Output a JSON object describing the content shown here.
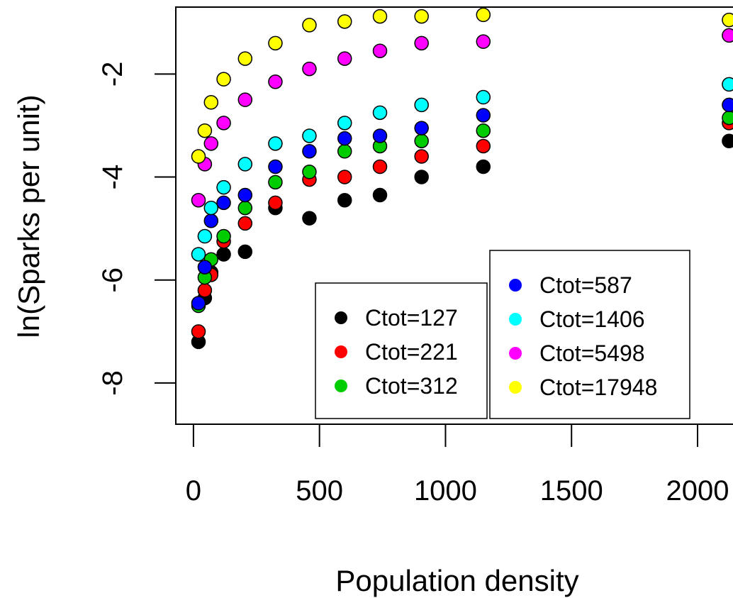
{
  "chart_data": {
    "type": "scatter",
    "xlabel": "Population density",
    "ylabel": "ln(Sparks per unit)",
    "xlim": [
      -70,
      2180
    ],
    "ylim": [
      -8.8,
      -0.7
    ],
    "xticks": [
      0,
      500,
      1000,
      1500,
      2000
    ],
    "yticks": [
      -8,
      -6,
      -4,
      -2
    ],
    "x": [
      20,
      45,
      70,
      120,
      205,
      325,
      460,
      600,
      740,
      905,
      1150,
      2125
    ],
    "series": [
      {
        "name": "Ctot=127",
        "color": "#000000",
        "values": [
          -7.2,
          -6.35,
          -5.85,
          -5.5,
          -5.45,
          -4.6,
          -4.8,
          -4.45,
          -4.35,
          -4.0,
          -3.8,
          -3.3
        ]
      },
      {
        "name": "Ctot=221",
        "color": "#ff0000",
        "values": [
          -7.0,
          -6.2,
          -5.9,
          -5.25,
          -4.9,
          -4.5,
          -4.05,
          -4.0,
          -3.8,
          -3.6,
          -3.4,
          -2.95
        ]
      },
      {
        "name": "Ctot=312",
        "color": "#00cd00",
        "values": [
          -6.5,
          -5.95,
          -5.6,
          -5.15,
          -4.6,
          -4.1,
          -3.9,
          -3.5,
          -3.4,
          -3.3,
          -3.1,
          -2.85
        ]
      },
      {
        "name": "Ctot=587",
        "color": "#0000ff",
        "values": [
          -6.45,
          -5.75,
          -4.85,
          -4.5,
          -4.35,
          -3.8,
          -3.5,
          -3.25,
          -3.2,
          -3.05,
          -2.8,
          -2.6
        ]
      },
      {
        "name": "Ctot=1406",
        "color": "#00ffff",
        "values": [
          -5.5,
          -5.15,
          -4.6,
          -4.2,
          -3.75,
          -3.35,
          -3.2,
          -2.95,
          -2.75,
          -2.6,
          -2.45,
          -2.2
        ]
      },
      {
        "name": "Ctot=5498",
        "color": "#ff00ff",
        "values": [
          -4.45,
          -3.75,
          -3.35,
          -2.95,
          -2.5,
          -2.15,
          -1.9,
          -1.7,
          -1.55,
          -1.4,
          -1.37,
          -1.25
        ]
      },
      {
        "name": "Ctot=17948",
        "color": "#ffff00",
        "values": [
          -3.6,
          -3.1,
          -2.55,
          -2.1,
          -1.7,
          -1.4,
          -1.05,
          -0.98,
          -0.88,
          -0.88,
          -0.85,
          -0.95
        ]
      }
    ],
    "legends": [
      {
        "placement": "bottom-center",
        "entries": [
          "Ctot=127",
          "Ctot=221",
          "Ctot=312"
        ]
      },
      {
        "placement": "bottom-right",
        "entries": [
          "Ctot=587",
          "Ctot=1406",
          "Ctot=5498",
          "Ctot=17948"
        ]
      }
    ],
    "grid": false
  }
}
